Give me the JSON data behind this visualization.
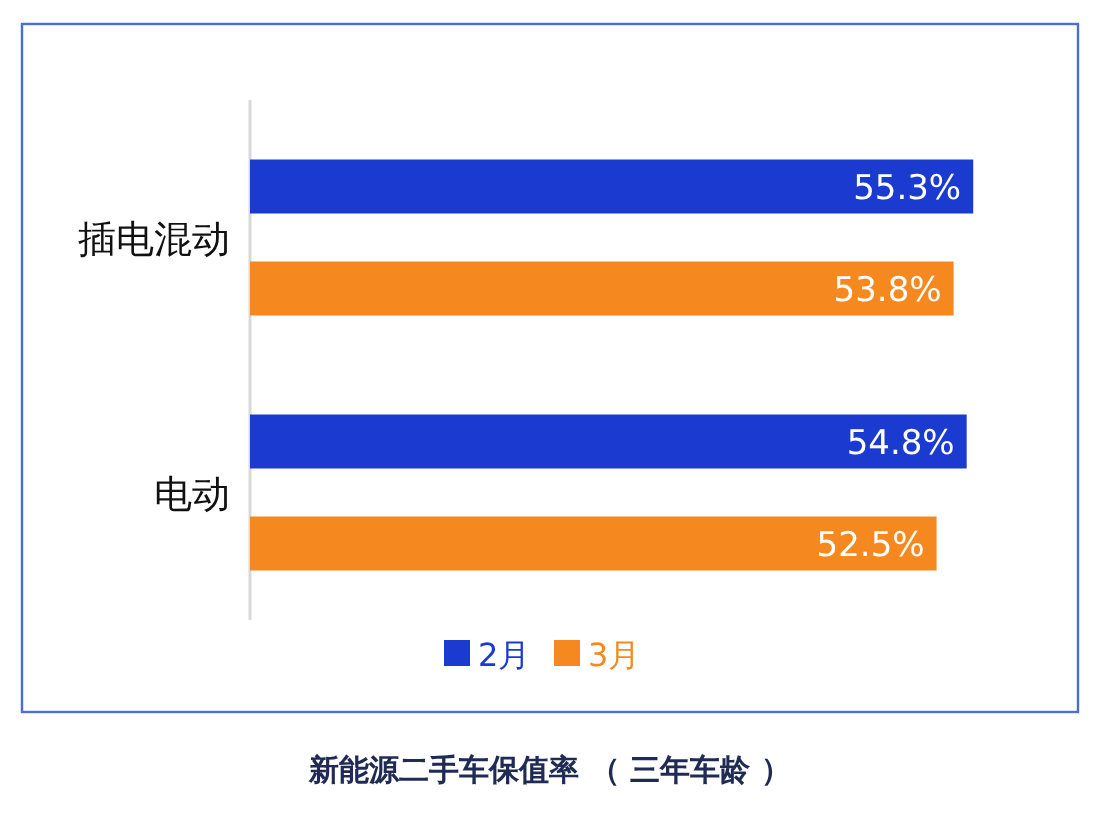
{
  "chart_data": {
    "type": "bar",
    "orientation": "horizontal",
    "title": "新能源二手车保值率 （ 三年车龄 ）",
    "categories": [
      "插电混动",
      "电动"
    ],
    "series": [
      {
        "name": "2月",
        "color": "#1a3ad0",
        "values": [
          55.3,
          54.8
        ],
        "value_labels": [
          "55.3%",
          "54.8%"
        ]
      },
      {
        "name": "3月",
        "color": "#f5891f",
        "values": [
          53.8,
          52.5
        ],
        "value_labels": [
          "53.8%",
          "52.5%"
        ]
      }
    ],
    "legend": "bottom",
    "tick_labels": "y"
  }
}
